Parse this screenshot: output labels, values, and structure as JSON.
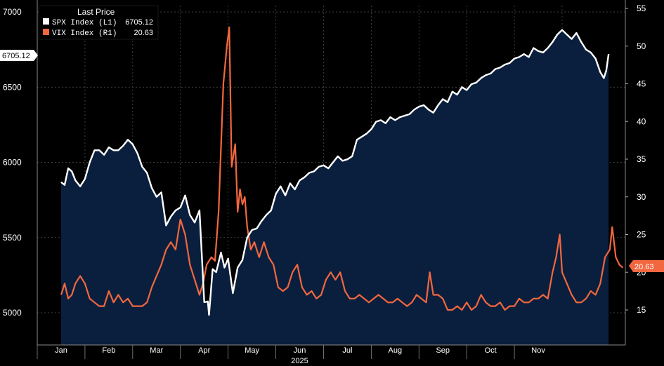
{
  "chart_data": {
    "type": "line",
    "x_label": "2025",
    "months": [
      "Jan",
      "Feb",
      "Mar",
      "Apr",
      "May",
      "Jun",
      "Jul",
      "Aug",
      "Sep",
      "Oct",
      "Nov"
    ],
    "left_axis": {
      "min": 4800,
      "max": 7000,
      "ticks": [
        5000,
        5500,
        6000,
        6500,
        7000
      ]
    },
    "right_axis": {
      "min": 10,
      "max": 55,
      "ticks": [
        15,
        20,
        25,
        30,
        35,
        40,
        45,
        50,
        55
      ]
    },
    "legend": {
      "title": "Last Price",
      "items": [
        {
          "name": "SPX Index  (L1)",
          "value": "6705.12",
          "color": "#ffffff"
        },
        {
          "name": "VIX Index  (R1)",
          "value": "20.63",
          "color": "#f2673f"
        }
      ]
    },
    "last_value_tags": {
      "left": "6705.12",
      "right": "20.63"
    },
    "series": [
      {
        "name": "SPX Index",
        "axis": "left",
        "color": "#ffffff",
        "area_fill": "#0a1f3d",
        "points": [
          [
            1.0,
            5868
          ],
          [
            1.15,
            5850
          ],
          [
            1.3,
            5960
          ],
          [
            1.45,
            5940
          ],
          [
            1.6,
            5880
          ],
          [
            1.8,
            5840
          ],
          [
            2.0,
            5890
          ],
          [
            2.2,
            6000
          ],
          [
            2.4,
            6080
          ],
          [
            2.6,
            6080
          ],
          [
            2.8,
            6050
          ],
          [
            3.0,
            6100
          ],
          [
            3.2,
            6080
          ],
          [
            3.4,
            6080
          ],
          [
            3.6,
            6110
          ],
          [
            3.8,
            6150
          ],
          [
            4.0,
            6120
          ],
          [
            4.2,
            6060
          ],
          [
            4.4,
            5970
          ],
          [
            4.6,
            5930
          ],
          [
            4.8,
            5830
          ],
          [
            5.0,
            5770
          ],
          [
            5.2,
            5800
          ],
          [
            5.4,
            5580
          ],
          [
            5.6,
            5640
          ],
          [
            5.8,
            5680
          ],
          [
            6.0,
            5700
          ],
          [
            6.2,
            5780
          ],
          [
            6.4,
            5650
          ],
          [
            6.6,
            5600
          ],
          [
            6.8,
            5680
          ],
          [
            7.0,
            5070
          ],
          [
            7.15,
            5075
          ],
          [
            7.2,
            4985
          ],
          [
            7.35,
            5290
          ],
          [
            7.5,
            5270
          ],
          [
            7.7,
            5400
          ],
          [
            7.85,
            5300
          ],
          [
            8.0,
            5360
          ],
          [
            8.2,
            5130
          ],
          [
            8.4,
            5300
          ],
          [
            8.6,
            5350
          ],
          [
            8.8,
            5500
          ],
          [
            9.0,
            5550
          ],
          [
            9.2,
            5560
          ],
          [
            9.4,
            5610
          ],
          [
            9.6,
            5650
          ],
          [
            9.8,
            5680
          ],
          [
            10.0,
            5790
          ],
          [
            10.2,
            5840
          ],
          [
            10.4,
            5780
          ],
          [
            10.6,
            5860
          ],
          [
            10.8,
            5820
          ],
          [
            11.0,
            5880
          ],
          [
            11.2,
            5900
          ],
          [
            11.4,
            5930
          ],
          [
            11.6,
            5940
          ],
          [
            11.8,
            5970
          ],
          [
            12.0,
            5980
          ],
          [
            12.2,
            5960
          ],
          [
            12.4,
            6000
          ],
          [
            12.6,
            6040
          ],
          [
            12.8,
            6010
          ],
          [
            13.0,
            6020
          ],
          [
            13.2,
            6040
          ],
          [
            13.4,
            6150
          ],
          [
            13.6,
            6170
          ],
          [
            13.8,
            6190
          ],
          [
            14.0,
            6220
          ],
          [
            14.2,
            6270
          ],
          [
            14.4,
            6280
          ],
          [
            14.6,
            6260
          ],
          [
            14.8,
            6300
          ],
          [
            15.0,
            6280
          ],
          [
            15.2,
            6300
          ],
          [
            15.4,
            6310
          ],
          [
            15.6,
            6320
          ],
          [
            15.8,
            6350
          ],
          [
            16.0,
            6370
          ],
          [
            16.2,
            6380
          ],
          [
            16.4,
            6350
          ],
          [
            16.6,
            6330
          ],
          [
            16.8,
            6380
          ],
          [
            17.0,
            6420
          ],
          [
            17.2,
            6400
          ],
          [
            17.4,
            6470
          ],
          [
            17.6,
            6450
          ],
          [
            17.8,
            6500
          ],
          [
            18.0,
            6480
          ],
          [
            18.2,
            6520
          ],
          [
            18.4,
            6530
          ],
          [
            18.6,
            6560
          ],
          [
            18.8,
            6580
          ],
          [
            19.0,
            6590
          ],
          [
            19.2,
            6620
          ],
          [
            19.4,
            6630
          ],
          [
            19.6,
            6650
          ],
          [
            19.8,
            6660
          ],
          [
            20.0,
            6690
          ],
          [
            20.2,
            6700
          ],
          [
            20.4,
            6720
          ],
          [
            20.6,
            6700
          ],
          [
            20.8,
            6760
          ],
          [
            21.0,
            6740
          ],
          [
            21.2,
            6730
          ],
          [
            21.4,
            6760
          ],
          [
            21.6,
            6800
          ],
          [
            21.8,
            6850
          ],
          [
            22.0,
            6880
          ],
          [
            22.2,
            6850
          ],
          [
            22.4,
            6820
          ],
          [
            22.6,
            6860
          ],
          [
            22.8,
            6800
          ],
          [
            23.0,
            6750
          ],
          [
            23.2,
            6730
          ],
          [
            23.4,
            6690
          ],
          [
            23.6,
            6600
          ],
          [
            23.75,
            6560
          ],
          [
            23.85,
            6610
          ],
          [
            23.95,
            6720
          ]
        ]
      },
      {
        "name": "VIX Index",
        "axis": "right",
        "color": "#f2673f",
        "points": [
          [
            1.0,
            17
          ],
          [
            1.15,
            18.5
          ],
          [
            1.3,
            16.5
          ],
          [
            1.45,
            17
          ],
          [
            1.6,
            18.5
          ],
          [
            1.8,
            19.5
          ],
          [
            2.0,
            18.5
          ],
          [
            2.2,
            16.5
          ],
          [
            2.4,
            16
          ],
          [
            2.6,
            15.5
          ],
          [
            2.8,
            15.5
          ],
          [
            3.0,
            17.5
          ],
          [
            3.2,
            16
          ],
          [
            3.4,
            17
          ],
          [
            3.6,
            16
          ],
          [
            3.8,
            16.5
          ],
          [
            4.0,
            15.5
          ],
          [
            4.2,
            15.5
          ],
          [
            4.4,
            15.5
          ],
          [
            4.6,
            16
          ],
          [
            4.8,
            18
          ],
          [
            5.0,
            19.5
          ],
          [
            5.2,
            21
          ],
          [
            5.4,
            23
          ],
          [
            5.6,
            24
          ],
          [
            5.8,
            23
          ],
          [
            6.0,
            27
          ],
          [
            6.2,
            25
          ],
          [
            6.4,
            21
          ],
          [
            6.6,
            19
          ],
          [
            6.8,
            17
          ],
          [
            6.95,
            18.5
          ],
          [
            7.1,
            21
          ],
          [
            7.3,
            22
          ],
          [
            7.45,
            21.5
          ],
          [
            7.6,
            28
          ],
          [
            7.8,
            45
          ],
          [
            7.95,
            50
          ],
          [
            8.05,
            52.5
          ],
          [
            8.15,
            34
          ],
          [
            8.3,
            37
          ],
          [
            8.4,
            28
          ],
          [
            8.5,
            31
          ],
          [
            8.6,
            29
          ],
          [
            8.7,
            30
          ],
          [
            8.8,
            26
          ],
          [
            8.95,
            23
          ],
          [
            9.1,
            24
          ],
          [
            9.3,
            22
          ],
          [
            9.5,
            24
          ],
          [
            9.7,
            22
          ],
          [
            9.9,
            21
          ],
          [
            10.1,
            18
          ],
          [
            10.3,
            17.5
          ],
          [
            10.5,
            18
          ],
          [
            10.7,
            20
          ],
          [
            10.9,
            21
          ],
          [
            11.1,
            18
          ],
          [
            11.3,
            17
          ],
          [
            11.5,
            17.5
          ],
          [
            11.7,
            16.5
          ],
          [
            11.9,
            17
          ],
          [
            12.1,
            19
          ],
          [
            12.3,
            20
          ],
          [
            12.5,
            19
          ],
          [
            12.7,
            20
          ],
          [
            12.9,
            17.5
          ],
          [
            13.1,
            16.5
          ],
          [
            13.3,
            16.5
          ],
          [
            13.5,
            17
          ],
          [
            13.7,
            16.5
          ],
          [
            13.9,
            16
          ],
          [
            14.1,
            16.5
          ],
          [
            14.3,
            17
          ],
          [
            14.5,
            16.5
          ],
          [
            14.7,
            16
          ],
          [
            14.9,
            16
          ],
          [
            15.1,
            16.5
          ],
          [
            15.3,
            16
          ],
          [
            15.5,
            15.5
          ],
          [
            15.7,
            16
          ],
          [
            15.9,
            17
          ],
          [
            16.1,
            16.5
          ],
          [
            16.3,
            16
          ],
          [
            16.45,
            20
          ],
          [
            16.6,
            17
          ],
          [
            16.8,
            17
          ],
          [
            17.0,
            16.5
          ],
          [
            17.2,
            15
          ],
          [
            17.4,
            15
          ],
          [
            17.6,
            15.5
          ],
          [
            17.8,
            15
          ],
          [
            18.0,
            16
          ],
          [
            18.2,
            15
          ],
          [
            18.4,
            15.5
          ],
          [
            18.6,
            17
          ],
          [
            18.8,
            16
          ],
          [
            19.0,
            15.5
          ],
          [
            19.2,
            15.5
          ],
          [
            19.4,
            16
          ],
          [
            19.6,
            15
          ],
          [
            19.8,
            15.5
          ],
          [
            20.0,
            15.5
          ],
          [
            20.2,
            16.5
          ],
          [
            20.4,
            16
          ],
          [
            20.6,
            16
          ],
          [
            20.8,
            16.5
          ],
          [
            21.0,
            16.5
          ],
          [
            21.2,
            17
          ],
          [
            21.4,
            16.5
          ],
          [
            21.6,
            20
          ],
          [
            21.75,
            22
          ],
          [
            21.9,
            25
          ],
          [
            22.0,
            20
          ],
          [
            22.2,
            18.5
          ],
          [
            22.4,
            17
          ],
          [
            22.6,
            16
          ],
          [
            22.8,
            16
          ],
          [
            23.0,
            16.5
          ],
          [
            23.2,
            17.5
          ],
          [
            23.4,
            17
          ],
          [
            23.6,
            18.5
          ],
          [
            23.8,
            22
          ],
          [
            24.0,
            23
          ],
          [
            24.1,
            26
          ],
          [
            24.25,
            22
          ],
          [
            24.4,
            21
          ],
          [
            24.55,
            20.6
          ]
        ]
      }
    ]
  }
}
